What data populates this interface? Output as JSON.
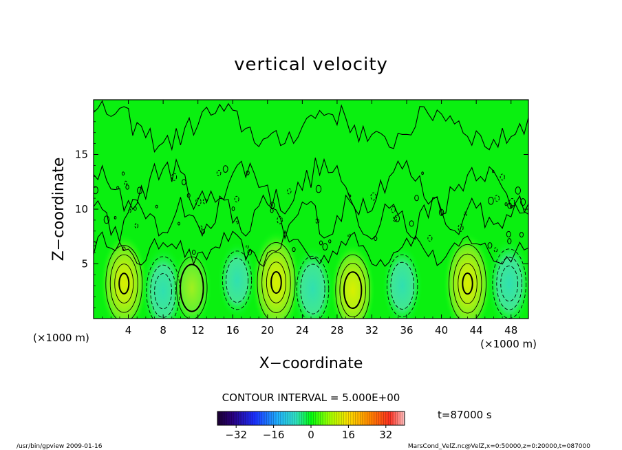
{
  "chart_data": {
    "type": "heatmap",
    "title": "vertical velocity",
    "xlabel": "X−coordinate",
    "ylabel": "Z−coordinate",
    "x_unit_left": "(×1000 m)",
    "x_unit_right": "(×1000 m)",
    "xlim": [
      0,
      50
    ],
    "ylim": [
      0,
      20
    ],
    "x_ticks": [
      4,
      8,
      12,
      16,
      20,
      24,
      28,
      32,
      36,
      40,
      44,
      48
    ],
    "x_tick_labels": [
      "4",
      "8",
      "12",
      "16",
      "20",
      "24",
      "28",
      "32",
      "36",
      "40",
      "44",
      "48"
    ],
    "y_ticks": [
      5,
      10,
      15
    ],
    "y_tick_labels": [
      "5",
      "10",
      "15"
    ],
    "contour_interval_label": "CONTOUR INTERVAL = 5.000E+00",
    "time_label": "t=87000 s",
    "colorbar": {
      "range": [
        -40,
        40
      ],
      "ticks": [
        -32,
        -16,
        0,
        16,
        32
      ],
      "tick_labels": [
        "−32",
        "−16",
        "0",
        "16",
        "32"
      ]
    },
    "cells": [
      {
        "x": 3.5,
        "z": 3.2,
        "w": 0.9
      },
      {
        "x": 8.0,
        "z": 2.5,
        "w": -0.7
      },
      {
        "x": 11.3,
        "z": 2.8,
        "w": 0.5
      },
      {
        "x": 16.5,
        "z": 3.5,
        "w": -0.4
      },
      {
        "x": 21.0,
        "z": 3.3,
        "w": 1.0
      },
      {
        "x": 25.2,
        "z": 2.7,
        "w": -0.6
      },
      {
        "x": 29.8,
        "z": 2.6,
        "w": 0.75
      },
      {
        "x": 35.5,
        "z": 3.0,
        "w": -0.5
      },
      {
        "x": 43.0,
        "z": 3.2,
        "w": 0.95
      },
      {
        "x": 47.8,
        "z": 3.2,
        "w": -0.7
      }
    ],
    "footer_left": "/usr/bin/gpview   2009-01-16",
    "footer_right": "MarsCond_VelZ.nc@VelZ,x=0:50000,z=0:20000,t=087000"
  }
}
